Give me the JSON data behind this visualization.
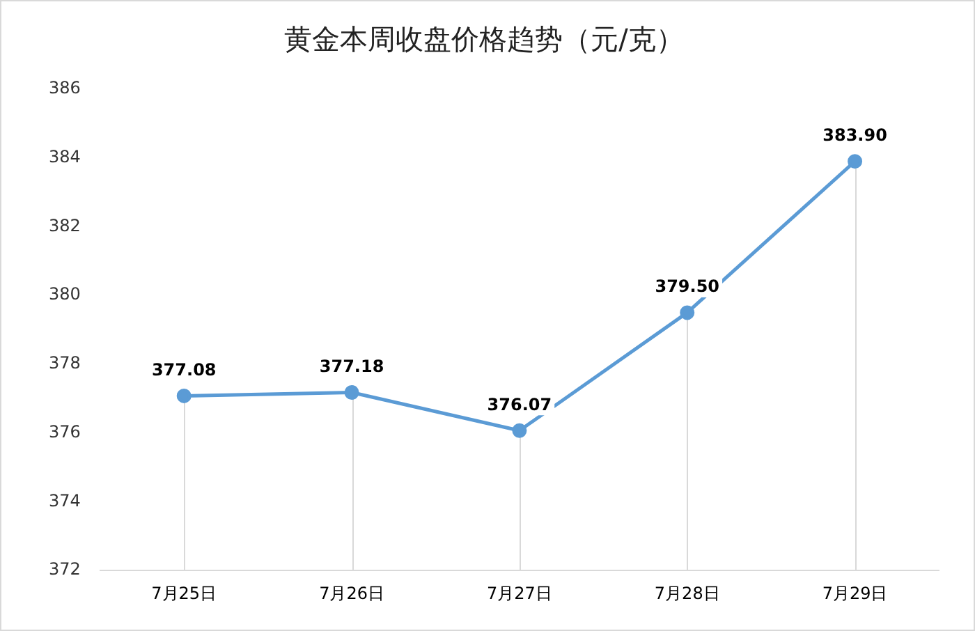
{
  "chart_data": {
    "type": "line",
    "title": "黄金本周收盘价格趋势（元/克）",
    "categories": [
      "7月25日",
      "7月26日",
      "7月27日",
      "7月28日",
      "7月29日"
    ],
    "series": [
      {
        "color": "#5b9bd5",
        "values": [
          377.08,
          377.18,
          376.07,
          379.5,
          383.9
        ]
      }
    ],
    "value_labels": [
      "377.08",
      "377.18",
      "376.07",
      "379.50",
      "383.90"
    ],
    "ylim": [
      372,
      386
    ],
    "yticks": [
      372,
      374,
      376,
      378,
      380,
      382,
      384,
      386
    ],
    "grid": "x",
    "legend": false,
    "marker": "circle",
    "line_style": "solid"
  }
}
